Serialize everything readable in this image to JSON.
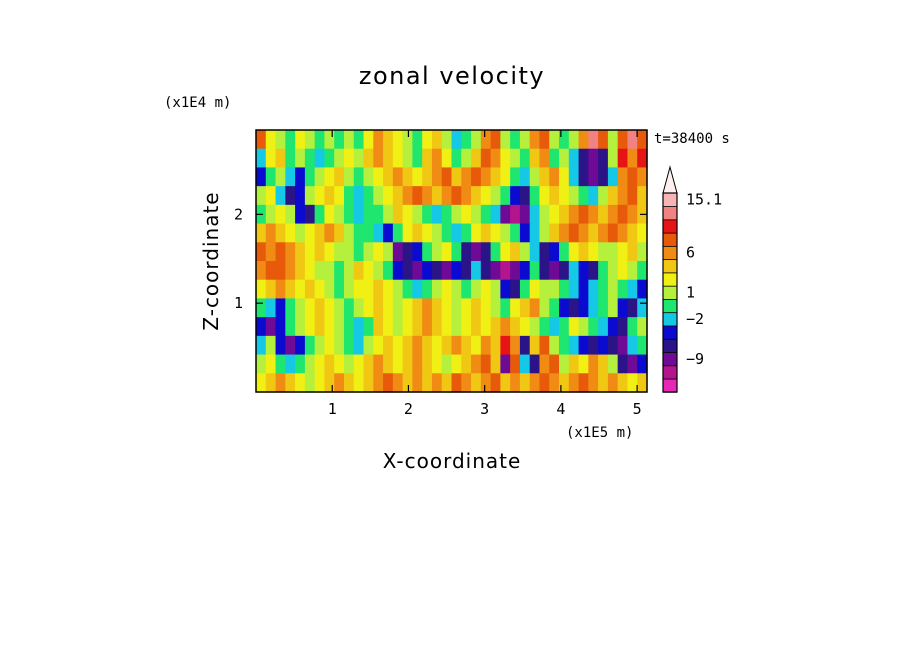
{
  "chart_data": {
    "type": "heatmap",
    "title": "zonal velocity",
    "xlabel": "X-coordinate",
    "ylabel": "Z-coordinate",
    "x_unit": "(x1E5 m)",
    "y_unit": "(x1E4 m)",
    "time_label": "t=38400 s",
    "xlim": [
      0,
      5.13
    ],
    "ylim": [
      0,
      2.95
    ],
    "x_ticks": [
      {
        "value": 1,
        "label": "1"
      },
      {
        "value": 2,
        "label": "2"
      },
      {
        "value": 3,
        "label": "3"
      },
      {
        "value": 4,
        "label": "4"
      },
      {
        "value": 5,
        "label": "5"
      }
    ],
    "y_ticks": [
      {
        "value": 1,
        "label": "1"
      },
      {
        "value": 2,
        "label": "2"
      }
    ],
    "colorbar": {
      "tick_labels": [
        {
          "label": "15.1",
          "level": 14
        },
        {
          "label": "6",
          "level": 10
        },
        {
          "label": "1",
          "level": 7
        },
        {
          "label": "−2",
          "level": 5
        },
        {
          "label": "−9",
          "level": 2
        }
      ],
      "colors": [
        "#e628b4",
        "#b4148c",
        "#6e0a96",
        "#2a1488",
        "#0a0ad0",
        "#14c8e6",
        "#1ee66e",
        "#b4f03c",
        "#f0f014",
        "#f0c814",
        "#f08c14",
        "#e65a0a",
        "#e61414",
        "#f08282",
        "#f8b4b4"
      ],
      "top_arrow_color": "#fff0f0"
    },
    "grid": false,
    "field": {
      "rows": [
        [
          11,
          8,
          7,
          6,
          8,
          7,
          6,
          7,
          6,
          7,
          6,
          8,
          10,
          9,
          8,
          7,
          6,
          8,
          9,
          7,
          5,
          6,
          7,
          10,
          11,
          7,
          6,
          7,
          10,
          11,
          7,
          6,
          7,
          10,
          13,
          11,
          7,
          11,
          13,
          11
        ],
        [
          5,
          8,
          9,
          6,
          7,
          6,
          5,
          6,
          7,
          8,
          7,
          9,
          10,
          9,
          8,
          7,
          6,
          9,
          10,
          8,
          6,
          7,
          9,
          11,
          10,
          8,
          7,
          6,
          9,
          10,
          6,
          7,
          5,
          3,
          2,
          3,
          7,
          12,
          10,
          12
        ],
        [
          4,
          6,
          7,
          5,
          4,
          6,
          7,
          8,
          9,
          7,
          6,
          7,
          8,
          9,
          10,
          9,
          8,
          9,
          10,
          11,
          9,
          10,
          11,
          10,
          9,
          8,
          6,
          5,
          7,
          9,
          10,
          8,
          5,
          3,
          2,
          3,
          5,
          10,
          11,
          10
        ],
        [
          7,
          8,
          5,
          3,
          4,
          7,
          8,
          9,
          8,
          6,
          5,
          6,
          7,
          8,
          9,
          10,
          11,
          10,
          9,
          10,
          11,
          10,
          9,
          8,
          7,
          6,
          4,
          3,
          6,
          8,
          9,
          8,
          7,
          6,
          5,
          7,
          9,
          10,
          11,
          9
        ],
        [
          6,
          7,
          8,
          7,
          4,
          3,
          6,
          8,
          7,
          6,
          5,
          6,
          6,
          7,
          9,
          8,
          7,
          6,
          5,
          6,
          7,
          8,
          7,
          6,
          5,
          2,
          1,
          2,
          5,
          7,
          8,
          9,
          10,
          11,
          10,
          9,
          10,
          11,
          10,
          9
        ],
        [
          9,
          10,
          9,
          8,
          7,
          8,
          9,
          10,
          9,
          7,
          6,
          6,
          5,
          4,
          6,
          8,
          9,
          8,
          7,
          6,
          5,
          6,
          8,
          9,
          8,
          7,
          6,
          4,
          5,
          7,
          9,
          10,
          11,
          10,
          9,
          10,
          11,
          10,
          9,
          8
        ],
        [
          11,
          10,
          11,
          10,
          9,
          8,
          9,
          8,
          7,
          7,
          6,
          7,
          8,
          7,
          2,
          3,
          4,
          6,
          7,
          8,
          6,
          3,
          2,
          3,
          6,
          8,
          9,
          7,
          5,
          3,
          4,
          6,
          8,
          9,
          8,
          7,
          7,
          8,
          9,
          7
        ],
        [
          10,
          11,
          11,
          10,
          9,
          8,
          7,
          7,
          6,
          7,
          9,
          8,
          7,
          6,
          4,
          3,
          2,
          4,
          3,
          2,
          4,
          3,
          5,
          3,
          2,
          1,
          2,
          4,
          6,
          3,
          2,
          3,
          5,
          4,
          3,
          6,
          7,
          8,
          7,
          6
        ],
        [
          8,
          9,
          10,
          9,
          8,
          9,
          8,
          7,
          6,
          7,
          8,
          8,
          9,
          8,
          7,
          6,
          5,
          6,
          7,
          8,
          7,
          6,
          7,
          8,
          7,
          4,
          3,
          6,
          8,
          7,
          7,
          6,
          5,
          4,
          5,
          6,
          7,
          6,
          5,
          4
        ],
        [
          6,
          5,
          4,
          6,
          7,
          8,
          9,
          8,
          7,
          6,
          7,
          8,
          9,
          8,
          7,
          8,
          9,
          10,
          9,
          8,
          7,
          8,
          9,
          8,
          7,
          6,
          8,
          9,
          10,
          7,
          6,
          4,
          3,
          4,
          5,
          6,
          7,
          4,
          3,
          5
        ],
        [
          4,
          2,
          4,
          6,
          7,
          8,
          9,
          8,
          7,
          6,
          5,
          6,
          9,
          8,
          7,
          8,
          9,
          10,
          9,
          8,
          7,
          8,
          9,
          8,
          9,
          10,
          9,
          8,
          7,
          6,
          5,
          6,
          8,
          7,
          6,
          5,
          4,
          3,
          6,
          7
        ],
        [
          5,
          7,
          4,
          2,
          4,
          6,
          7,
          8,
          7,
          6,
          5,
          7,
          8,
          9,
          8,
          9,
          10,
          9,
          8,
          9,
          10,
          9,
          8,
          10,
          9,
          12,
          10,
          3,
          9,
          11,
          7,
          6,
          5,
          4,
          3,
          4,
          3,
          2,
          5,
          6
        ],
        [
          7,
          8,
          6,
          5,
          6,
          7,
          8,
          9,
          8,
          7,
          8,
          9,
          10,
          9,
          8,
          9,
          10,
          9,
          8,
          7,
          8,
          9,
          10,
          11,
          9,
          2,
          11,
          5,
          3,
          10,
          11,
          7,
          9,
          8,
          10,
          9,
          7,
          3,
          2,
          4
        ],
        [
          8,
          9,
          10,
          9,
          8,
          7,
          8,
          9,
          10,
          9,
          8,
          9,
          10,
          11,
          10,
          9,
          10,
          9,
          10,
          9,
          11,
          10,
          9,
          10,
          11,
          9,
          10,
          9,
          10,
          11,
          10,
          9,
          10,
          11,
          10,
          9,
          10,
          9,
          8,
          9
        ]
      ]
    }
  }
}
